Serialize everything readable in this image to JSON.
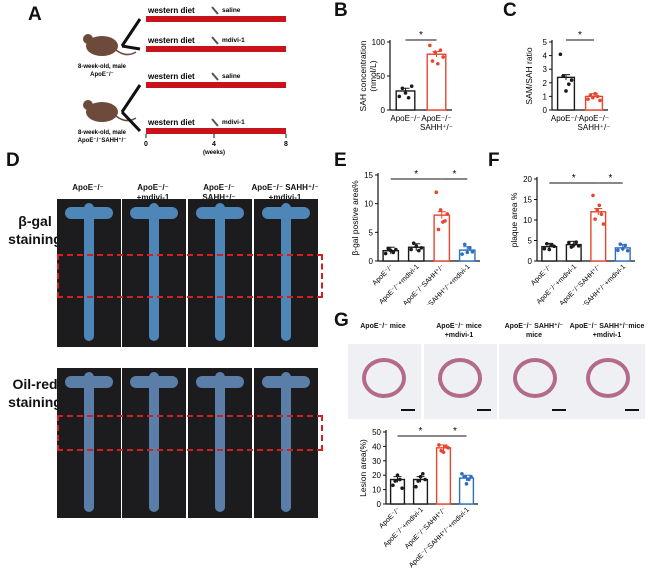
{
  "panel_letters": {
    "A": "A",
    "B": "B",
    "C": "C",
    "D": "D",
    "E": "E",
    "F": "F",
    "G": "G"
  },
  "panelA": {
    "diet": "western diet",
    "saline": "saline",
    "mdivi": "mdivi-1",
    "mouse1": [
      "8-week-old, male",
      "ApoE⁻/⁻"
    ],
    "mouse2": [
      "8-week-old, male",
      "ApoE⁻/⁻SAHH⁺/⁻"
    ],
    "ticks": [
      "0",
      "4",
      "8"
    ],
    "tick_unit": "(weeks)",
    "colors": {
      "bar": "#c8131a",
      "mouse": "#6e4a3c"
    }
  },
  "panelD": {
    "groups": [
      "ApoE⁻/⁻",
      "ApoE⁻/⁻\n+mdivi-1",
      "ApoE⁻/⁻\nSAHH⁺/⁻",
      "ApoE⁻/⁻ SAHH⁺/⁻\n+mdivi-1"
    ],
    "row1": "β-gal\nstaining",
    "row2": "Oil-red\nstaining"
  },
  "panelG": {
    "headers": [
      "ApoE⁻/⁻ mice",
      "ApoE⁻/⁻ mice\n+mdivi-1",
      "ApoE⁻/⁻ SAHH⁺/⁻\nmice",
      "ApoE⁻/⁻ SAHH⁺/⁻mice\n+mdivi-1"
    ]
  },
  "colors": {
    "black": "#1a1a1a",
    "red": "#e8452f",
    "blue": "#2e6fbf"
  },
  "chart_data": [
    {
      "id": "B",
      "type": "bar",
      "ylabel": "SAH concentration\n(nmol/L)",
      "ylim": [
        0,
        100
      ],
      "yticks": [
        0,
        50,
        100
      ],
      "categories": [
        "ApoE⁻/⁻",
        "ApoE⁻/⁻\nSAHH⁺/⁻"
      ],
      "values": [
        28,
        82
      ],
      "colors": [
        "#1a1a1a",
        "#e8452f"
      ],
      "points": [
        [
          20,
          32,
          25,
          18,
          35
        ],
        [
          95,
          72,
          85,
          68,
          88,
          78
        ]
      ],
      "sig": [
        [
          0,
          1,
          "*"
        ]
      ]
    },
    {
      "id": "C",
      "type": "bar",
      "ylabel": "SAM/SAH ratio",
      "ylim": [
        0,
        5
      ],
      "yticks": [
        0,
        1,
        2,
        3,
        4,
        5
      ],
      "categories": [
        "ApoE⁻/⁻",
        "ApoE⁻/⁻\nSAHH⁺/⁻"
      ],
      "values": [
        2.4,
        1.0
      ],
      "colors": [
        "#1a1a1a",
        "#e8452f"
      ],
      "points": [
        [
          4.1,
          2.5,
          1.4,
          1.9,
          2.2
        ],
        [
          0.8,
          1.1,
          0.9,
          1.2,
          1.0,
          0.7
        ]
      ],
      "sig": [
        [
          0,
          1,
          "*"
        ]
      ]
    },
    {
      "id": "E",
      "type": "bar",
      "ylabel": "β-gal postive area%",
      "ylim": [
        0,
        15
      ],
      "yticks": [
        0,
        5,
        10,
        15
      ],
      "categories": [
        "ApoE⁻/⁻",
        "ApoE⁻/⁻+mdivi-1",
        "ApoE⁻/⁻SAHH⁺/⁻",
        "ApoE⁻/⁻SAHH⁺/⁻+mdivi-1"
      ],
      "values": [
        1.8,
        2.4,
        8.0,
        1.9
      ],
      "colors": [
        "#1a1a1a",
        "#1a1a1a",
        "#e8452f",
        "#2e6fbf"
      ],
      "points": [
        [
          1.3,
          2.2,
          1.8,
          1.5,
          2.0
        ],
        [
          2.0,
          3.1,
          2.6,
          1.8,
          2.3
        ],
        [
          12.0,
          5.5,
          8.9,
          6.8,
          7.0,
          8.2
        ],
        [
          1.2,
          2.9,
          1.5,
          2.3,
          1.6
        ]
      ],
      "sig": [
        [
          0,
          2,
          "*"
        ],
        [
          2,
          3,
          "*"
        ]
      ]
    },
    {
      "id": "F",
      "type": "bar",
      "ylabel": "plaque area %",
      "ylim": [
        0,
        20
      ],
      "yticks": [
        0,
        5,
        10,
        15,
        20
      ],
      "categories": [
        "ApoE⁻/⁻",
        "ApoE⁻/⁻+mdivi-1",
        "ApoE⁻/⁻SAHH⁺/⁻",
        "ApoE⁻/⁻SAHH⁺/⁻+mdivi-1"
      ],
      "values": [
        3.5,
        4.0,
        12.0,
        3.2
      ],
      "colors": [
        "#1a1a1a",
        "#1a1a1a",
        "#e8452f",
        "#2e6fbf"
      ],
      "points": [
        [
          3.0,
          4.2,
          2.8,
          3.9,
          3.6
        ],
        [
          4.5,
          3.4,
          3.9,
          4.6,
          3.7
        ],
        [
          16.0,
          10.2,
          12.5,
          13.6,
          11.4,
          9.0
        ],
        [
          2.6,
          4.1,
          3.0,
          3.8,
          2.5
        ]
      ],
      "sig": [
        [
          0,
          2,
          "*"
        ],
        [
          2,
          3,
          "*"
        ]
      ]
    },
    {
      "id": "G",
      "type": "bar",
      "ylabel": "Lesion area(%)",
      "ylim": [
        0,
        50
      ],
      "yticks": [
        0,
        10,
        20,
        30,
        40,
        50
      ],
      "categories": [
        "ApoE⁻/⁻",
        "ApoE⁻/⁻+mdivi-1",
        "ApoE⁻/⁻SAHH⁺/⁻",
        "ApoE⁻/⁻SAHH⁺/⁻+mdivi-1"
      ],
      "values": [
        17,
        17,
        39,
        18
      ],
      "colors": [
        "#1a1a1a",
        "#1a1a1a",
        "#e8452f",
        "#2e6fbf"
      ],
      "points": [
        [
          13,
          16,
          20,
          17,
          11
        ],
        [
          12,
          16,
          19,
          21,
          17
        ],
        [
          41,
          37,
          36,
          40,
          39
        ],
        [
          21,
          19,
          14,
          17,
          19
        ]
      ],
      "sig": [
        [
          0,
          2,
          "*"
        ],
        [
          2,
          3,
          "*"
        ]
      ]
    }
  ]
}
